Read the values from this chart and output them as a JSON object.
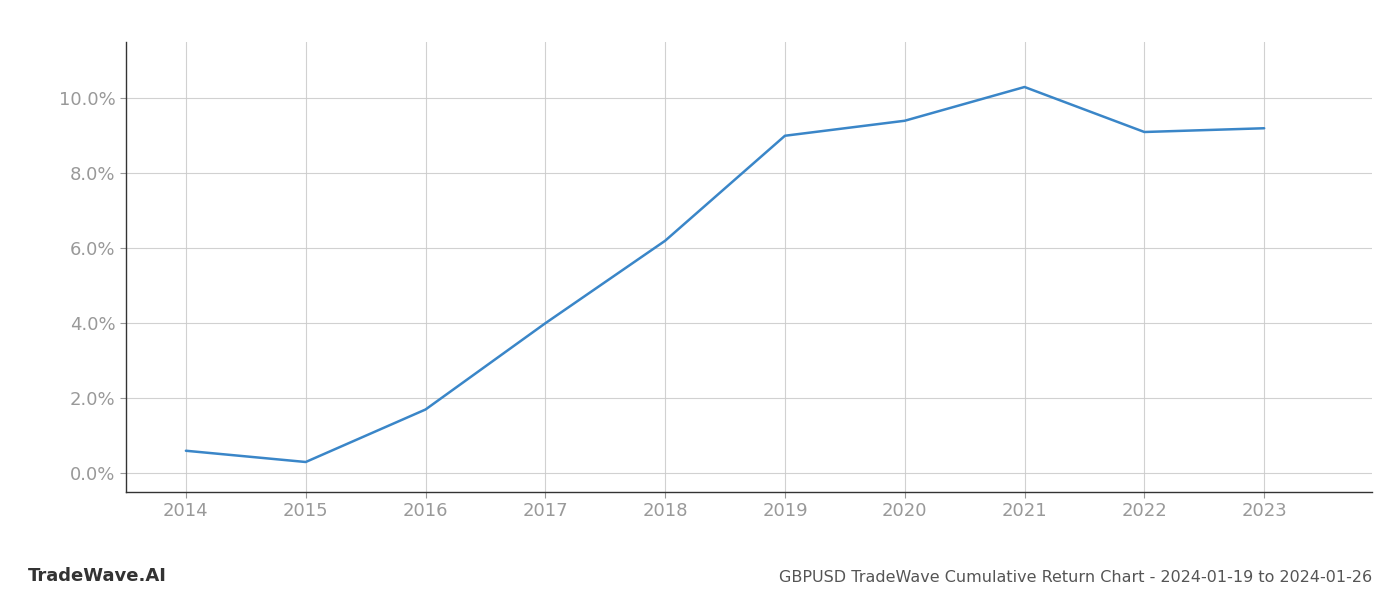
{
  "x": [
    2014,
    2015,
    2016,
    2017,
    2018,
    2019,
    2020,
    2021,
    2022,
    2023
  ],
  "y": [
    0.006,
    0.003,
    0.017,
    0.04,
    0.062,
    0.09,
    0.094,
    0.103,
    0.091,
    0.092
  ],
  "line_color": "#3a86c8",
  "line_width": 1.8,
  "title": "GBPUSD TradeWave Cumulative Return Chart - 2024-01-19 to 2024-01-26",
  "watermark": "TradeWave.AI",
  "ylim": [
    -0.005,
    0.115
  ],
  "xlim": [
    2013.5,
    2023.9
  ],
  "yticks": [
    0.0,
    0.02,
    0.04,
    0.06,
    0.08,
    0.1
  ],
  "xticks": [
    2014,
    2015,
    2016,
    2017,
    2018,
    2019,
    2020,
    2021,
    2022,
    2023
  ],
  "background_color": "#ffffff",
  "grid_color": "#cccccc",
  "tick_label_color": "#999999",
  "title_color": "#555555",
  "watermark_color": "#333333",
  "title_fontsize": 11.5,
  "tick_fontsize": 13,
  "watermark_fontsize": 13
}
